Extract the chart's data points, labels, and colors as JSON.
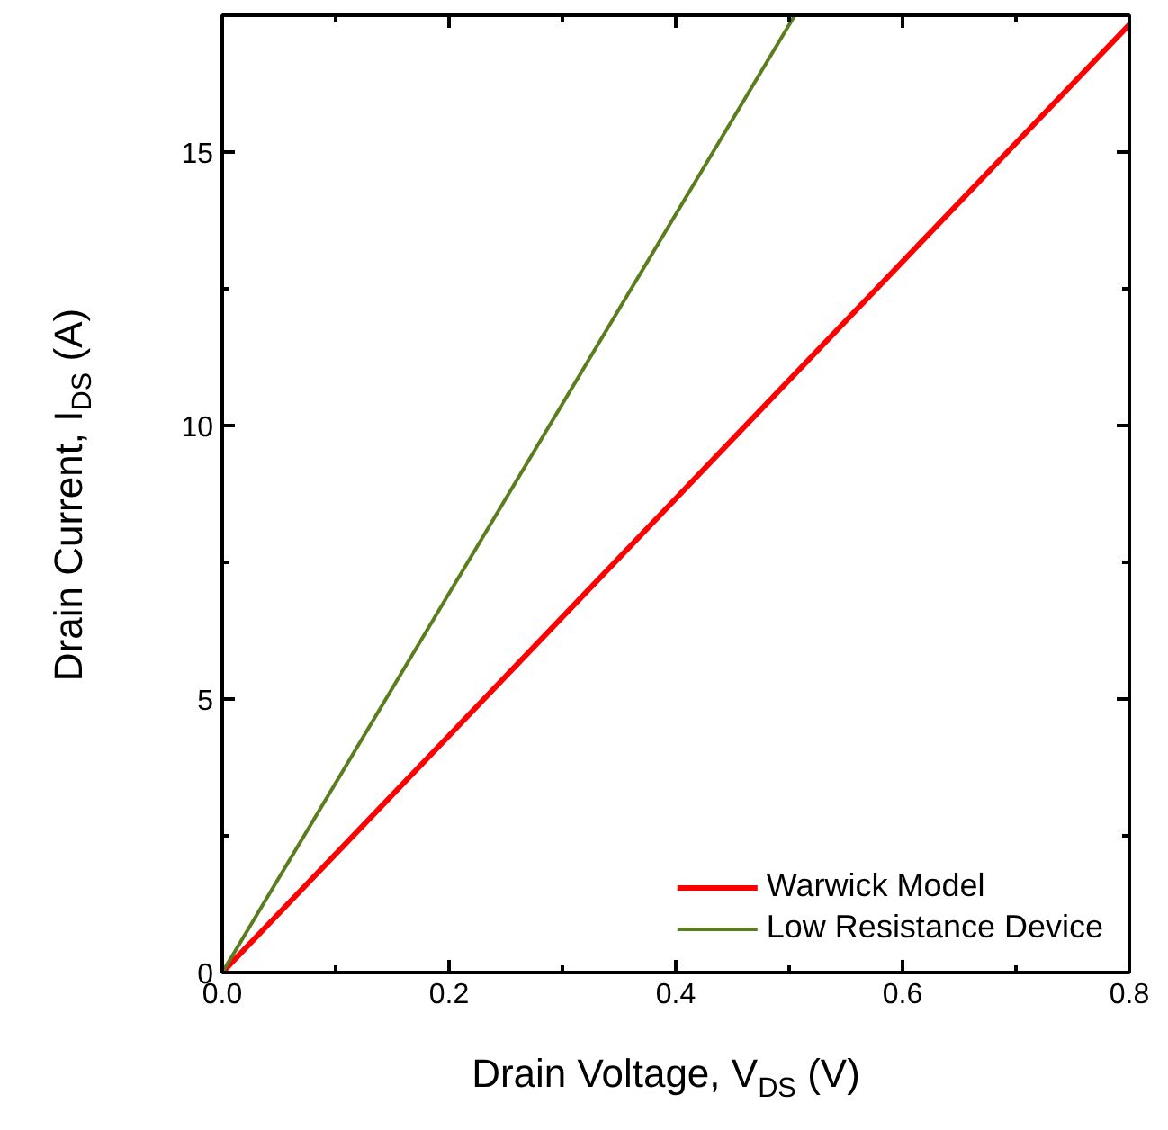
{
  "chart_data": {
    "type": "line",
    "xlabel": "Drain Voltage, V$_{DS}$ (V)",
    "ylabel": "Drain Current, I$_{DS}$ (A)",
    "xlim": [
      0,
      0.8
    ],
    "ylim": [
      0,
      17.5
    ],
    "xticks": [
      {
        "value": 0,
        "label": "0.0"
      },
      0.2,
      0.4,
      0.6,
      0.8
    ],
    "yticks": [
      0,
      5,
      10,
      15
    ],
    "grid": false,
    "legend": "bottom right",
    "marker": "none",
    "line_style": "solid",
    "series": [
      {
        "name": "Warwick Model",
        "color": "#ff0000",
        "x": [
          0,
          0.8
        ],
        "values": [
          0,
          17.33
        ]
      },
      {
        "name": "Low Resistance Device",
        "color": "#5a7d1e",
        "x": [
          0,
          0.505
        ],
        "values": [
          0,
          17.5
        ]
      }
    ]
  }
}
